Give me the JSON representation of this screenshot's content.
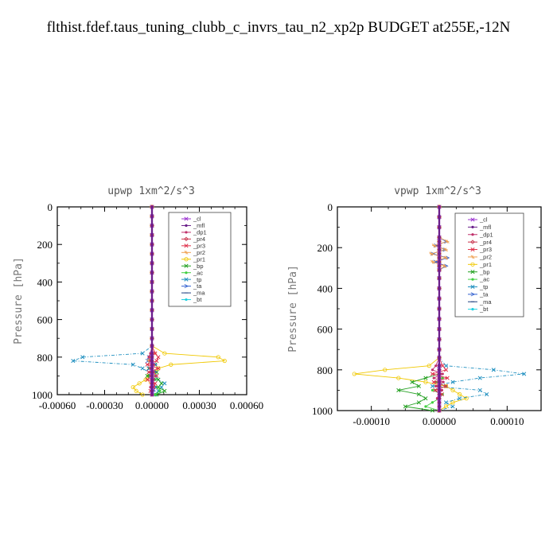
{
  "figure_title": "flthist.fdef.taus_tuning_clubb_c_invrs_tau_n2_xp2p  BUDGET at255E,-12N",
  "chart_data": [
    {
      "type": "line",
      "title": "upwp   1xm^2/s^3",
      "ylabel": "Pressure [hPa]",
      "xlabel": "",
      "xlim": [
        -0.0006,
        0.0006
      ],
      "ylim": [
        1000,
        0
      ],
      "xticks": [
        -0.0006,
        -0.0003,
        0.0,
        0.0003,
        0.0006
      ],
      "xtick_labels": [
        "-0.00060",
        "-0.00030",
        "0.00000",
        "0.00030",
        "0.00060"
      ],
      "yticks": [
        0,
        200,
        400,
        600,
        800,
        1000
      ],
      "ytick_labels": [
        "0",
        "200",
        "400",
        "600",
        "800",
        "1000"
      ],
      "legend_position": "top-right",
      "legend": [
        "_cl",
        "_mfl",
        "_dp1",
        "_pr4",
        "_pr3",
        "_pr2",
        "_pr1",
        "_bp",
        "_ac",
        "_tp",
        "_ta",
        "_ma",
        "_bt"
      ],
      "pressure": [
        0,
        50,
        100,
        150,
        200,
        250,
        300,
        350,
        400,
        450,
        500,
        550,
        600,
        650,
        700,
        740,
        780,
        800,
        820,
        840,
        860,
        880,
        900,
        920,
        940,
        960,
        980,
        1000
      ],
      "series": [
        {
          "name": "_cl",
          "values": [
            0,
            0,
            0,
            0,
            0,
            0,
            0,
            0,
            0,
            0,
            0,
            0,
            0,
            0,
            0,
            0,
            0,
            0,
            0,
            0,
            0,
            0,
            0,
            0,
            0,
            0,
            0,
            0
          ]
        },
        {
          "name": "_mfl",
          "values": [
            0,
            0,
            0,
            0,
            0,
            0,
            0,
            0,
            0,
            0,
            0,
            0,
            0,
            0,
            0,
            0,
            0,
            0,
            0,
            0,
            0,
            0,
            0,
            0,
            0,
            0,
            0,
            0
          ]
        },
        {
          "name": "_dp1",
          "values": [
            0,
            0,
            0,
            0,
            0,
            0,
            0,
            0,
            0,
            0,
            0,
            0,
            0,
            0,
            0,
            0,
            -1e-05,
            -2e-05,
            -1e-05,
            1e-05,
            -1e-05,
            1e-05,
            -1e-05,
            1e-05,
            0,
            -1e-05,
            0,
            0
          ]
        },
        {
          "name": "_pr4",
          "values": [
            0,
            0,
            0,
            0,
            0,
            0,
            0,
            0,
            0,
            0,
            0,
            0,
            0,
            0,
            0,
            0,
            0,
            0,
            0,
            0,
            0,
            0,
            0,
            0,
            0,
            0,
            0,
            0
          ]
        },
        {
          "name": "_pr3",
          "values": [
            0,
            0,
            0,
            0,
            0,
            0,
            0,
            0,
            0,
            0,
            0,
            0,
            0,
            0,
            0,
            0,
            2e-05,
            4e-05,
            3e-05,
            -3e-05,
            4e-05,
            -2e-05,
            3e-05,
            -3e-05,
            2e-05,
            1e-05,
            -1e-05,
            0
          ]
        },
        {
          "name": "_pr2",
          "values": [
            0,
            0,
            0,
            0,
            0,
            0,
            0,
            0,
            0,
            0,
            0,
            0,
            0,
            0,
            0,
            0,
            2e-05,
            -1e-05,
            -2e-05,
            1e-05,
            -1e-05,
            1e-05,
            0,
            0,
            -1e-05,
            0,
            0,
            0
          ]
        },
        {
          "name": "_pr1",
          "values": [
            0,
            0,
            0,
            0,
            0,
            0,
            0,
            0,
            0,
            0,
            0,
            0,
            0,
            0,
            0,
            0,
            8e-05,
            0.00042,
            0.00046,
            0.00012,
            4e-05,
            2e-05,
            -2e-05,
            -4e-05,
            -8e-05,
            -0.00012,
            -0.0001,
            -6e-05
          ]
        },
        {
          "name": "_bp",
          "values": [
            0,
            0,
            0,
            0,
            0,
            0,
            0,
            0,
            0,
            0,
            0,
            0,
            0,
            0,
            0,
            0,
            0,
            0,
            -1e-05,
            2e-05,
            -2e-05,
            3e-05,
            -3e-05,
            4e-05,
            6e-05,
            4e-05,
            8e-05,
            3e-05
          ]
        },
        {
          "name": "_ac",
          "values": [
            0,
            0,
            0,
            0,
            0,
            0,
            0,
            0,
            0,
            0,
            0,
            0,
            0,
            0,
            0,
            0,
            0,
            0,
            0,
            1e-05,
            -1e-05,
            1e-05,
            -1e-05,
            2e-05,
            0,
            3e-05,
            5e-05,
            2e-05
          ]
        },
        {
          "name": "_tp",
          "values": [
            0,
            0,
            0,
            0,
            0,
            0,
            0,
            0,
            0,
            0,
            0,
            0,
            0,
            0,
            0,
            0,
            -6e-05,
            -0.00044,
            -0.0005,
            -0.00012,
            -6e-05,
            -2e-05,
            2e-05,
            4e-05,
            8e-05,
            6e-05,
            4e-05,
            2e-05
          ]
        },
        {
          "name": "_ta",
          "values": [
            0,
            0,
            0,
            0,
            0,
            0,
            0,
            0,
            0,
            0,
            0,
            0,
            0,
            0,
            0,
            0,
            0,
            -2e-05,
            -3e-05,
            2e-05,
            -2e-05,
            2e-05,
            -1e-05,
            1e-05,
            0,
            2e-05,
            1e-05,
            0
          ]
        },
        {
          "name": "_ma",
          "values": [
            0,
            0,
            0,
            0,
            0,
            0,
            0,
            0,
            0,
            0,
            0,
            0,
            0,
            0,
            0,
            0,
            0,
            0,
            0,
            0,
            0,
            0,
            0,
            0,
            0,
            0,
            0,
            0
          ]
        },
        {
          "name": "_bt",
          "values": [
            0,
            0,
            0,
            0,
            0,
            0,
            0,
            0,
            0,
            0,
            0,
            0,
            0,
            0,
            0,
            0,
            0,
            0,
            0,
            0,
            0,
            0,
            0,
            0,
            0,
            0,
            0,
            0
          ]
        }
      ]
    },
    {
      "type": "line",
      "title": "vpwp   1xm^2/s^3",
      "ylabel": "Pressure [hPa]",
      "xlabel": "",
      "xlim": [
        -0.00015,
        0.00015
      ],
      "ylim": [
        1000,
        0
      ],
      "xticks": [
        -0.0001,
        0.0,
        0.0001
      ],
      "xtick_labels": [
        "-0.00010",
        "0.00000",
        "0.00010"
      ],
      "yticks": [
        0,
        200,
        400,
        600,
        800,
        1000
      ],
      "ytick_labels": [
        "0",
        "200",
        "400",
        "600",
        "800",
        "1000"
      ],
      "legend_position": "top-right",
      "legend": [
        "_cl",
        "_mfl",
        "_dp1",
        "_pr4",
        "_pr3",
        "_pr2",
        "_pr1",
        "_bp",
        "_ac",
        "_tp",
        "_ta",
        "_ma",
        "_bt"
      ],
      "pressure": [
        0,
        50,
        100,
        150,
        170,
        190,
        210,
        230,
        250,
        270,
        290,
        310,
        350,
        400,
        450,
        500,
        550,
        600,
        650,
        700,
        740,
        780,
        800,
        820,
        840,
        860,
        880,
        900,
        920,
        940,
        960,
        980,
        1000
      ],
      "series": [
        {
          "name": "_cl",
          "values": [
            0,
            0,
            0,
            0,
            0,
            0,
            0,
            0,
            0,
            0,
            0,
            0,
            0,
            0,
            0,
            0,
            0,
            0,
            0,
            0,
            0,
            0,
            0,
            0,
            0,
            0,
            0,
            0,
            0,
            0,
            0,
            0,
            0
          ]
        },
        {
          "name": "_mfl",
          "values": [
            0,
            0,
            0,
            0,
            0,
            0,
            0,
            0,
            0,
            0,
            0,
            0,
            0,
            0,
            0,
            0,
            0,
            0,
            0,
            0,
            0,
            0,
            0,
            0,
            0,
            0,
            0,
            0,
            0,
            0,
            0,
            0,
            0
          ]
        },
        {
          "name": "_dp1",
          "values": [
            0,
            0,
            0,
            0,
            0,
            0,
            0,
            0,
            0,
            0,
            0,
            0,
            0,
            0,
            0,
            0,
            0,
            0,
            0,
            0,
            0,
            -5e-06,
            -1e-05,
            5e-06,
            -8e-06,
            6e-06,
            -5e-06,
            4e-06,
            0,
            -3e-06,
            0,
            0,
            0
          ]
        },
        {
          "name": "_pr4",
          "values": [
            0,
            0,
            0,
            0,
            0,
            0,
            0,
            0,
            0,
            0,
            0,
            0,
            0,
            0,
            0,
            0,
            0,
            0,
            0,
            0,
            0,
            0,
            0,
            0,
            0,
            0,
            0,
            0,
            0,
            0,
            0,
            0,
            0
          ]
        },
        {
          "name": "_pr3",
          "values": [
            0,
            0,
            0,
            0,
            0,
            0,
            0,
            0,
            0,
            0,
            0,
            0,
            0,
            0,
            0,
            0,
            0,
            0,
            0,
            0,
            0,
            5e-06,
            1e-05,
            -1e-05,
            1.2e-05,
            -8e-06,
            1e-05,
            -6e-06,
            4e-06,
            0,
            0,
            0,
            0
          ]
        },
        {
          "name": "_pr2",
          "values": [
            0,
            0,
            0,
            0,
            1.2e-05,
            -8e-06,
            1e-05,
            -1.2e-05,
            1e-05,
            -1e-05,
            8e-06,
            0,
            0,
            0,
            0,
            0,
            0,
            0,
            0,
            0,
            0,
            0,
            0,
            0,
            0,
            0,
            0,
            0,
            0,
            0,
            0,
            0,
            0
          ]
        },
        {
          "name": "_pr1",
          "values": [
            0,
            0,
            0,
            0,
            0,
            0,
            0,
            0,
            0,
            0,
            0,
            0,
            0,
            0,
            0,
            0,
            0,
            0,
            0,
            0,
            0,
            -1.5e-05,
            -8e-05,
            -0.000125,
            -6e-05,
            -2e-05,
            1e-05,
            2e-05,
            3e-05,
            4e-05,
            2e-05,
            1e-05,
            0
          ]
        },
        {
          "name": "_bp",
          "values": [
            0,
            0,
            0,
            0,
            0,
            0,
            0,
            0,
            0,
            0,
            0,
            0,
            0,
            0,
            0,
            0,
            0,
            0,
            0,
            0,
            0,
            0,
            0,
            0,
            -2e-05,
            -4e-05,
            -3e-05,
            -6e-05,
            -3e-05,
            -2e-05,
            -3e-05,
            -5e-05,
            -1e-05
          ]
        },
        {
          "name": "_ac",
          "values": [
            0,
            0,
            0,
            0,
            0,
            0,
            0,
            0,
            0,
            0,
            0,
            0,
            0,
            0,
            0,
            0,
            0,
            0,
            0,
            0,
            0,
            0,
            0,
            0,
            5e-06,
            -5e-06,
            1e-05,
            -1e-05,
            5e-06,
            0,
            -1e-05,
            -2e-05,
            0
          ]
        },
        {
          "name": "_tp",
          "values": [
            0,
            0,
            0,
            0,
            0,
            0,
            0,
            0,
            0,
            0,
            0,
            0,
            0,
            0,
            0,
            0,
            0,
            0,
            0,
            0,
            0,
            1e-05,
            8e-05,
            0.000125,
            6e-05,
            2e-05,
            -1e-05,
            6e-05,
            7e-05,
            3e-05,
            1e-05,
            2e-05,
            0
          ]
        },
        {
          "name": "_ta",
          "values": [
            0,
            0,
            0,
            0,
            1e-05,
            -5e-06,
            8e-06,
            -1e-05,
            1.2e-05,
            -6e-06,
            1e-05,
            0,
            0,
            0,
            0,
            0,
            0,
            0,
            0,
            0,
            0,
            0,
            0,
            0,
            0,
            0,
            0,
            0,
            0,
            0,
            0,
            0,
            0
          ]
        },
        {
          "name": "_ma",
          "values": [
            0,
            0,
            0,
            0,
            0,
            0,
            0,
            0,
            0,
            0,
            0,
            0,
            0,
            0,
            0,
            0,
            0,
            0,
            0,
            0,
            0,
            0,
            0,
            0,
            0,
            0,
            0,
            0,
            0,
            0,
            0,
            0,
            0
          ]
        },
        {
          "name": "_bt",
          "values": [
            0,
            0,
            0,
            0,
            0,
            0,
            0,
            0,
            0,
            0,
            0,
            0,
            0,
            0,
            0,
            0,
            0,
            0,
            0,
            0,
            0,
            0,
            0,
            0,
            0,
            0,
            0,
            0,
            0,
            0,
            0,
            0,
            0
          ]
        }
      ]
    }
  ],
  "series_colors": {
    "_cl": "#9b30d0",
    "_mfl": "#6a1f8a",
    "_dp1": "#c0306a",
    "_pr4": "#c8304a",
    "_pr3": "#e0304a",
    "_pr2": "#f0a050",
    "_pr1": "#f0c800",
    "_bp": "#22a020",
    "_ac": "#40d040",
    "_tp": "#2090c0",
    "_ta": "#3060d0",
    "_ma": "#204080",
    "_bt": "#20d0e0"
  }
}
